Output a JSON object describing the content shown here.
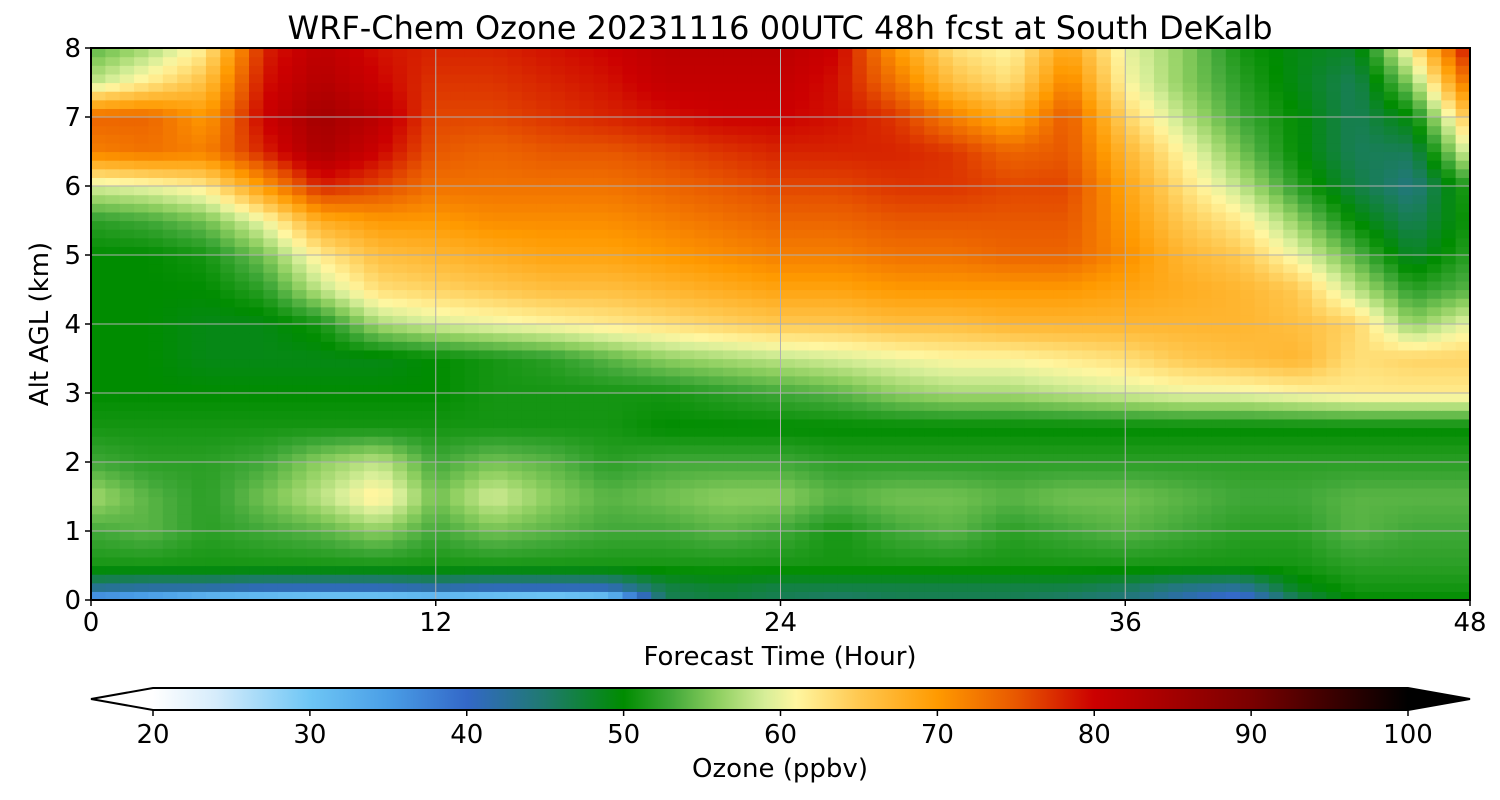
{
  "chart_data": {
    "type": "heatmap",
    "title": "WRF-Chem Ozone  20231116 00UTC 48h fcst at South DeKalb",
    "xlabel": "Forecast Time (Hour)",
    "ylabel": "Alt AGL (km)",
    "xlim": [
      0,
      48
    ],
    "ylim": [
      0,
      8
    ],
    "xticks": [
      0,
      12,
      24,
      36,
      48
    ],
    "yticks": [
      0,
      1,
      2,
      3,
      4,
      5,
      6,
      7,
      8
    ],
    "grid": true,
    "colorbar": {
      "label": "Ozone  (ppbv)",
      "range": [
        20,
        100
      ],
      "ticks": [
        20,
        30,
        40,
        50,
        60,
        70,
        80,
        90,
        100
      ],
      "extend": "both",
      "orientation": "horizontal",
      "colors": [
        {
          "v": 20,
          "c": "#ffffff"
        },
        {
          "v": 24,
          "c": "#d6ecfb"
        },
        {
          "v": 30,
          "c": "#6ec6f5"
        },
        {
          "v": 35,
          "c": "#4a9ee6"
        },
        {
          "v": 40,
          "c": "#3368c8"
        },
        {
          "v": 45,
          "c": "#1f7a6e"
        },
        {
          "v": 50,
          "c": "#008c00"
        },
        {
          "v": 53,
          "c": "#40a838"
        },
        {
          "v": 56,
          "c": "#8ecf60"
        },
        {
          "v": 59,
          "c": "#d6ee98"
        },
        {
          "v": 61,
          "c": "#fff6a0"
        },
        {
          "v": 65,
          "c": "#ffc850"
        },
        {
          "v": 70,
          "c": "#ff9a00"
        },
        {
          "v": 75,
          "c": "#e85800"
        },
        {
          "v": 80,
          "c": "#cc0000"
        },
        {
          "v": 90,
          "c": "#7a0000"
        },
        {
          "v": 100,
          "c": "#000000"
        }
      ]
    },
    "x": [
      0,
      2,
      4,
      6,
      8,
      10,
      12,
      14,
      16,
      18,
      20,
      22,
      24,
      26,
      28,
      30,
      32,
      34,
      36,
      38,
      40,
      42,
      44,
      46,
      48
    ],
    "y": [
      0,
      0.2,
      0.5,
      1,
      1.5,
      2,
      2.5,
      3,
      3.5,
      4,
      4.5,
      5,
      5.5,
      6,
      6.5,
      7,
      7.5,
      8
    ],
    "z": [
      [
        33,
        31,
        28,
        27,
        26,
        26,
        27,
        26,
        25,
        27,
        46,
        47,
        46,
        45,
        46,
        46,
        46,
        45,
        44,
        41,
        38,
        46,
        50,
        50,
        50
      ],
      [
        44,
        43,
        43,
        42,
        42,
        42,
        43,
        42,
        42,
        42,
        47,
        48,
        47,
        47,
        47,
        47,
        47,
        47,
        46,
        44,
        43,
        49,
        51,
        51,
        51
      ],
      [
        51,
        51,
        51,
        51,
        51,
        51,
        51,
        51,
        51,
        51,
        51,
        51,
        51,
        51,
        51,
        51,
        51,
        51,
        51,
        51,
        51,
        51,
        52,
        52,
        52
      ],
      [
        53,
        54,
        52,
        53,
        54,
        56,
        53,
        55,
        54,
        53,
        53,
        54,
        53,
        51,
        53,
        54,
        52,
        53,
        54,
        53,
        52,
        52,
        54,
        53,
        53
      ],
      [
        57,
        54,
        52,
        55,
        58,
        62,
        55,
        59,
        56,
        54,
        55,
        56,
        56,
        54,
        55,
        55,
        54,
        55,
        55,
        54,
        53,
        53,
        54,
        54,
        54
      ],
      [
        53,
        52,
        52,
        53,
        56,
        58,
        53,
        55,
        54,
        52,
        53,
        53,
        53,
        52,
        52,
        52,
        52,
        52,
        52,
        52,
        52,
        52,
        52,
        52,
        52
      ],
      [
        51,
        51,
        51,
        51,
        51,
        51,
        51,
        51,
        51,
        51,
        50,
        50,
        50,
        50,
        50,
        50,
        50,
        50,
        50,
        50,
        50,
        50,
        50,
        50,
        50
      ],
      [
        50,
        50,
        50,
        50,
        50,
        50,
        50,
        51,
        51,
        51,
        51,
        52,
        53,
        54,
        56,
        57,
        57,
        58,
        59,
        60,
        60,
        61,
        62,
        62,
        62
      ],
      [
        50,
        50,
        49,
        49,
        49,
        49,
        50,
        51,
        52,
        54,
        56,
        57,
        58,
        59,
        60,
        61,
        61,
        62,
        63,
        65,
        66,
        67,
        63,
        64,
        64
      ],
      [
        50,
        50,
        49,
        49,
        51,
        57,
        59,
        60,
        61,
        62,
        63,
        64,
        65,
        65,
        66,
        66,
        67,
        67,
        67,
        67,
        67,
        66,
        64,
        56,
        60
      ],
      [
        50,
        50,
        50,
        52,
        58,
        63,
        64,
        65,
        66,
        66,
        67,
        68,
        69,
        69,
        70,
        70,
        70,
        70,
        69,
        68,
        67,
        65,
        58,
        52,
        54
      ],
      [
        50,
        50,
        51,
        55,
        62,
        66,
        67,
        68,
        69,
        69,
        70,
        71,
        72,
        72,
        73,
        73,
        74,
        74,
        71,
        67,
        65,
        60,
        54,
        48,
        52
      ],
      [
        52,
        53,
        55,
        60,
        68,
        70,
        70,
        71,
        71,
        71,
        72,
        73,
        74,
        74,
        75,
        75,
        75,
        75,
        70,
        65,
        62,
        56,
        50,
        46,
        51
      ],
      [
        59,
        60,
        62,
        70,
        78,
        76,
        73,
        73,
        73,
        73,
        74,
        75,
        76,
        76,
        77,
        77,
        76,
        76,
        69,
        63,
        58,
        52,
        47,
        44,
        52
      ],
      [
        72,
        73,
        72,
        78,
        84,
        80,
        75,
        74,
        75,
        75,
        76,
        77,
        78,
        78,
        78,
        77,
        74,
        75,
        67,
        61,
        55,
        50,
        46,
        46,
        60
      ],
      [
        74,
        74,
        70,
        80,
        85,
        82,
        76,
        76,
        77,
        78,
        79,
        80,
        80,
        79,
        77,
        72,
        68,
        75,
        64,
        58,
        53,
        50,
        46,
        50,
        66
      ],
      [
        58,
        62,
        66,
        79,
        83,
        80,
        77,
        77,
        78,
        79,
        81,
        81,
        81,
        79,
        73,
        66,
        63,
        72,
        61,
        56,
        52,
        49,
        46,
        56,
        74
      ],
      [
        54,
        57,
        62,
        78,
        82,
        79,
        78,
        78,
        79,
        80,
        82,
        82,
        82,
        80,
        70,
        63,
        61,
        69,
        60,
        56,
        51,
        49,
        48,
        62,
        80
      ]
    ]
  }
}
